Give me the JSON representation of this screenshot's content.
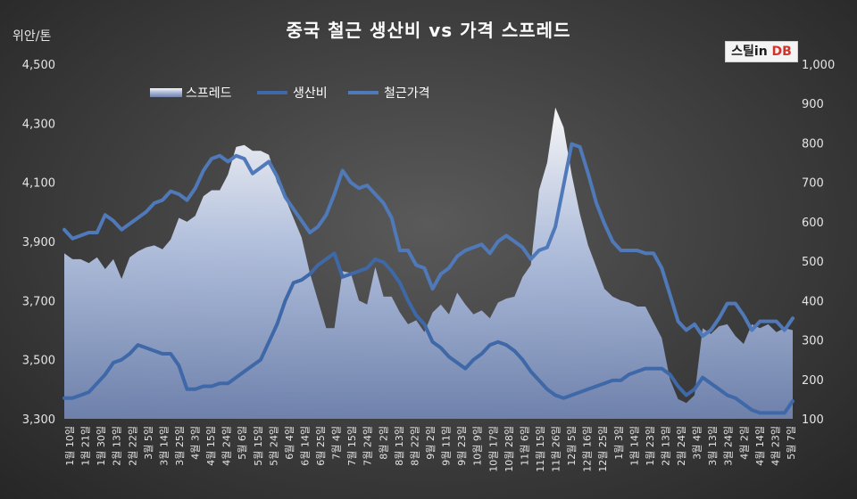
{
  "chart_data": {
    "type": "line",
    "title": "중국 철근 생산비 vs 가격 스프레드",
    "ylabel_left": "위안/톤",
    "y_left": {
      "ticks": [
        "3,300",
        "3,500",
        "3,700",
        "3,900",
        "4,100",
        "4,300",
        "4,500"
      ],
      "lim": [
        3300,
        4500
      ]
    },
    "y_right": {
      "ticks": [
        "100",
        "200",
        "300",
        "400",
        "500",
        "600",
        "700",
        "800",
        "900",
        "1,000"
      ],
      "lim": [
        100,
        1000
      ]
    },
    "legend": {
      "placement": "top-left",
      "items": [
        "스프레드",
        "생산비",
        "철근가격"
      ]
    },
    "x_labels": [
      "1월 10일",
      "1월 21일",
      "1월 30일",
      "2월 13일",
      "2월 22일",
      "3월 5일",
      "3월 14일",
      "3월 25일",
      "4월 3일",
      "4월 15일",
      "4월 24일",
      "5월 6일",
      "5월 15일",
      "5월 24일",
      "6월 4일",
      "6월 14일",
      "6월 25일",
      "7월 4일",
      "7월 15일",
      "7월 24일",
      "8월 2일",
      "8월 13일",
      "8월 22일",
      "9월 2일",
      "9월 11일",
      "9월 23일",
      "10월 9일",
      "10월 17일",
      "10월 28일",
      "11월 6일",
      "11월 15일",
      "11월 26일",
      "12월 5일",
      "12월 16일",
      "12월 25일",
      "1월 3일",
      "1월 14일",
      "1월 23일",
      "2월 13일",
      "2월 24일",
      "3월 4일",
      "3월 13일",
      "3월 24일",
      "4월 2일",
      "4월 14일",
      "4월 23일",
      "5월 7일"
    ],
    "series": [
      {
        "name": "스프레드",
        "axis": "right",
        "color": "#c5d3ee",
        "values": [
          520,
          505,
          505,
          495,
          510,
          480,
          505,
          455,
          510,
          525,
          535,
          540,
          530,
          555,
          610,
          600,
          615,
          665,
          680,
          680,
          720,
          790,
          795,
          780,
          780,
          770,
          700,
          660,
          610,
          560,
          470,
          400,
          330,
          330,
          475,
          470,
          400,
          390,
          485,
          410,
          410,
          370,
          340,
          350,
          320,
          370,
          390,
          365,
          420,
          390,
          365,
          375,
          355,
          395,
          405,
          410,
          460,
          490,
          680,
          750,
          890,
          840,
          720,
          620,
          540,
          485,
          430,
          410,
          400,
          395,
          385,
          385,
          345,
          305,
          200,
          150,
          140,
          160,
          330,
          315,
          335,
          340,
          310,
          290,
          340,
          330,
          340,
          320,
          330,
          325
        ]
      },
      {
        "name": "생산비",
        "axis": "left",
        "color": "#3f68a8",
        "values": [
          3370,
          3370,
          3380,
          3390,
          3420,
          3450,
          3490,
          3500,
          3520,
          3550,
          3540,
          3530,
          3520,
          3520,
          3480,
          3400,
          3400,
          3410,
          3410,
          3420,
          3420,
          3440,
          3460,
          3480,
          3500,
          3560,
          3620,
          3700,
          3760,
          3770,
          3790,
          3820,
          3840,
          3860,
          3780,
          3790,
          3800,
          3810,
          3840,
          3830,
          3800,
          3760,
          3700,
          3650,
          3620,
          3560,
          3540,
          3510,
          3490,
          3470,
          3500,
          3520,
          3550,
          3560,
          3550,
          3530,
          3500,
          3460,
          3430,
          3400,
          3380,
          3370,
          3380,
          3390,
          3400,
          3410,
          3420,
          3430,
          3430,
          3450,
          3460,
          3470,
          3470,
          3470,
          3450,
          3410,
          3380,
          3400,
          3440,
          3420,
          3400,
          3380,
          3370,
          3350,
          3330,
          3320,
          3320,
          3320,
          3320,
          3360
        ]
      },
      {
        "name": "철근가격",
        "axis": "left",
        "color": "#4f79b8",
        "values": [
          3940,
          3910,
          3920,
          3930,
          3930,
          3990,
          3970,
          3940,
          3960,
          3980,
          4000,
          4030,
          4040,
          4070,
          4060,
          4040,
          4080,
          4140,
          4180,
          4190,
          4170,
          4190,
          4180,
          4130,
          4150,
          4170,
          4120,
          4050,
          4010,
          3970,
          3930,
          3950,
          3990,
          4060,
          4140,
          4100,
          4080,
          4090,
          4060,
          4030,
          3980,
          3870,
          3870,
          3820,
          3810,
          3740,
          3790,
          3810,
          3850,
          3870,
          3880,
          3890,
          3860,
          3900,
          3920,
          3900,
          3880,
          3840,
          3870,
          3880,
          3950,
          4090,
          4230,
          4220,
          4130,
          4030,
          3960,
          3900,
          3870,
          3870,
          3870,
          3860,
          3860,
          3810,
          3720,
          3630,
          3600,
          3620,
          3580,
          3600,
          3640,
          3690,
          3690,
          3650,
          3600,
          3630,
          3630,
          3630,
          3600,
          3640
        ]
      }
    ]
  }
}
